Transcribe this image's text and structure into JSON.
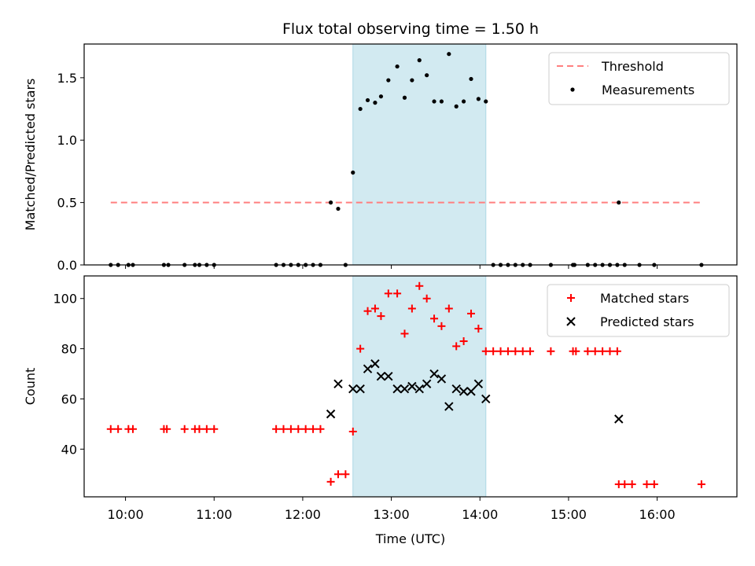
{
  "chart_data": {
    "type": "scatter",
    "title": "Flux total observing time = 1.50 h",
    "xlabel": "Time (UTC)",
    "x_ticks": [
      "10:00",
      "11:00",
      "12:00",
      "13:00",
      "14:00",
      "15:00",
      "16:00"
    ],
    "xlim": [
      "09:32",
      "16:54"
    ],
    "highlight_span": {
      "start": "12:34",
      "end": "14:04",
      "color": "#add8e6"
    },
    "panels": [
      {
        "ylabel": "Matched/Predicted stars",
        "ylim": [
          0,
          1.77
        ],
        "y_ticks": [
          "0.0",
          "0.5",
          "1.0",
          "1.5"
        ],
        "legend_placement": "top-right",
        "series": [
          {
            "name": "Threshold",
            "kind": "dashed-line",
            "color": "#ff7f7f",
            "points": [
              [
                "09:50",
                0.5
              ],
              [
                "16:30",
                0.5
              ]
            ]
          },
          {
            "name": "Measurements",
            "kind": "dot",
            "color": "#000000",
            "points": [
              [
                "09:50",
                0
              ],
              [
                "09:55",
                0
              ],
              [
                "10:02",
                0
              ],
              [
                "10:05",
                0
              ],
              [
                "10:26",
                0
              ],
              [
                "10:29",
                0
              ],
              [
                "10:40",
                0
              ],
              [
                "10:47",
                0
              ],
              [
                "10:50",
                0
              ],
              [
                "10:55",
                0
              ],
              [
                "11:00",
                0
              ],
              [
                "11:42",
                0
              ],
              [
                "11:47",
                0
              ],
              [
                "11:52",
                0
              ],
              [
                "11:57",
                0
              ],
              [
                "12:02",
                0
              ],
              [
                "12:07",
                0
              ],
              [
                "12:12",
                0
              ],
              [
                "12:19",
                0.5
              ],
              [
                "12:24",
                0.45
              ],
              [
                "12:29",
                0
              ],
              [
                "12:34",
                0.74
              ],
              [
                "12:39",
                1.25
              ],
              [
                "12:44",
                1.32
              ],
              [
                "12:49",
                1.3
              ],
              [
                "12:53",
                1.35
              ],
              [
                "12:58",
                1.48
              ],
              [
                "13:04",
                1.59
              ],
              [
                "13:09",
                1.34
              ],
              [
                "13:14",
                1.48
              ],
              [
                "13:19",
                1.64
              ],
              [
                "13:24",
                1.52
              ],
              [
                "13:29",
                1.31
              ],
              [
                "13:34",
                1.31
              ],
              [
                "13:39",
                1.69
              ],
              [
                "13:44",
                1.27
              ],
              [
                "13:49",
                1.31
              ],
              [
                "13:54",
                1.49
              ],
              [
                "13:59",
                1.33
              ],
              [
                "14:04",
                1.31
              ],
              [
                "14:09",
                0
              ],
              [
                "14:14",
                0
              ],
              [
                "14:19",
                0
              ],
              [
                "14:24",
                0
              ],
              [
                "14:29",
                0
              ],
              [
                "14:34",
                0
              ],
              [
                "14:48",
                0
              ],
              [
                "15:03",
                0
              ],
              [
                "15:04",
                0
              ],
              [
                "15:13",
                0
              ],
              [
                "15:18",
                0
              ],
              [
                "15:23",
                0
              ],
              [
                "15:28",
                0
              ],
              [
                "15:33",
                0
              ],
              [
                "15:34",
                0.5
              ],
              [
                "15:38",
                0
              ],
              [
                "15:48",
                0
              ],
              [
                "15:58",
                0
              ],
              [
                "16:30",
                0
              ]
            ]
          }
        ]
      },
      {
        "ylabel": "Count",
        "ylim": [
          21,
          109
        ],
        "y_ticks": [
          "40",
          "60",
          "80",
          "100"
        ],
        "legend_placement": "top-right",
        "series": [
          {
            "name": "Matched stars",
            "kind": "plus",
            "color": "#ff0000",
            "points": [
              [
                "09:50",
                48
              ],
              [
                "09:55",
                48
              ],
              [
                "10:02",
                48
              ],
              [
                "10:05",
                48
              ],
              [
                "10:26",
                48
              ],
              [
                "10:28",
                48
              ],
              [
                "10:40",
                48
              ],
              [
                "10:47",
                48
              ],
              [
                "10:50",
                48
              ],
              [
                "10:55",
                48
              ],
              [
                "11:00",
                48
              ],
              [
                "11:42",
                48
              ],
              [
                "11:47",
                48
              ],
              [
                "11:52",
                48
              ],
              [
                "11:57",
                48
              ],
              [
                "12:02",
                48
              ],
              [
                "12:07",
                48
              ],
              [
                "12:12",
                48
              ],
              [
                "12:19",
                27
              ],
              [
                "12:24",
                30
              ],
              [
                "12:29",
                30
              ],
              [
                "12:34",
                47
              ],
              [
                "12:39",
                80
              ],
              [
                "12:44",
                95
              ],
              [
                "12:49",
                96
              ],
              [
                "12:53",
                93
              ],
              [
                "12:58",
                102
              ],
              [
                "13:04",
                102
              ],
              [
                "13:09",
                86
              ],
              [
                "13:14",
                96
              ],
              [
                "13:19",
                105
              ],
              [
                "13:24",
                100
              ],
              [
                "13:29",
                92
              ],
              [
                "13:34",
                89
              ],
              [
                "13:39",
                96
              ],
              [
                "13:44",
                81
              ],
              [
                "13:49",
                83
              ],
              [
                "13:54",
                94
              ],
              [
                "13:59",
                88
              ],
              [
                "14:04",
                79
              ],
              [
                "14:09",
                79
              ],
              [
                "14:14",
                79
              ],
              [
                "14:19",
                79
              ],
              [
                "14:24",
                79
              ],
              [
                "14:29",
                79
              ],
              [
                "14:34",
                79
              ],
              [
                "14:48",
                79
              ],
              [
                "15:03",
                79
              ],
              [
                "15:05",
                79
              ],
              [
                "15:13",
                79
              ],
              [
                "15:18",
                79
              ],
              [
                "15:23",
                79
              ],
              [
                "15:28",
                79
              ],
              [
                "15:33",
                79
              ],
              [
                "15:34",
                26
              ],
              [
                "15:38",
                26
              ],
              [
                "15:43",
                26
              ],
              [
                "15:53",
                26
              ],
              [
                "15:58",
                26
              ],
              [
                "16:30",
                26
              ]
            ]
          },
          {
            "name": "Predicted stars",
            "kind": "x",
            "color": "#000000",
            "points": [
              [
                "12:19",
                54
              ],
              [
                "12:24",
                66
              ],
              [
                "12:34",
                64
              ],
              [
                "12:39",
                64
              ],
              [
                "12:44",
                72
              ],
              [
                "12:49",
                74
              ],
              [
                "12:53",
                69
              ],
              [
                "12:58",
                69
              ],
              [
                "13:04",
                64
              ],
              [
                "13:09",
                64
              ],
              [
                "13:14",
                65
              ],
              [
                "13:19",
                64
              ],
              [
                "13:24",
                66
              ],
              [
                "13:29",
                70
              ],
              [
                "13:34",
                68
              ],
              [
                "13:39",
                57
              ],
              [
                "13:44",
                64
              ],
              [
                "13:49",
                63
              ],
              [
                "13:54",
                63
              ],
              [
                "13:59",
                66
              ],
              [
                "14:04",
                60
              ],
              [
                "15:34",
                52
              ]
            ]
          }
        ]
      }
    ]
  }
}
